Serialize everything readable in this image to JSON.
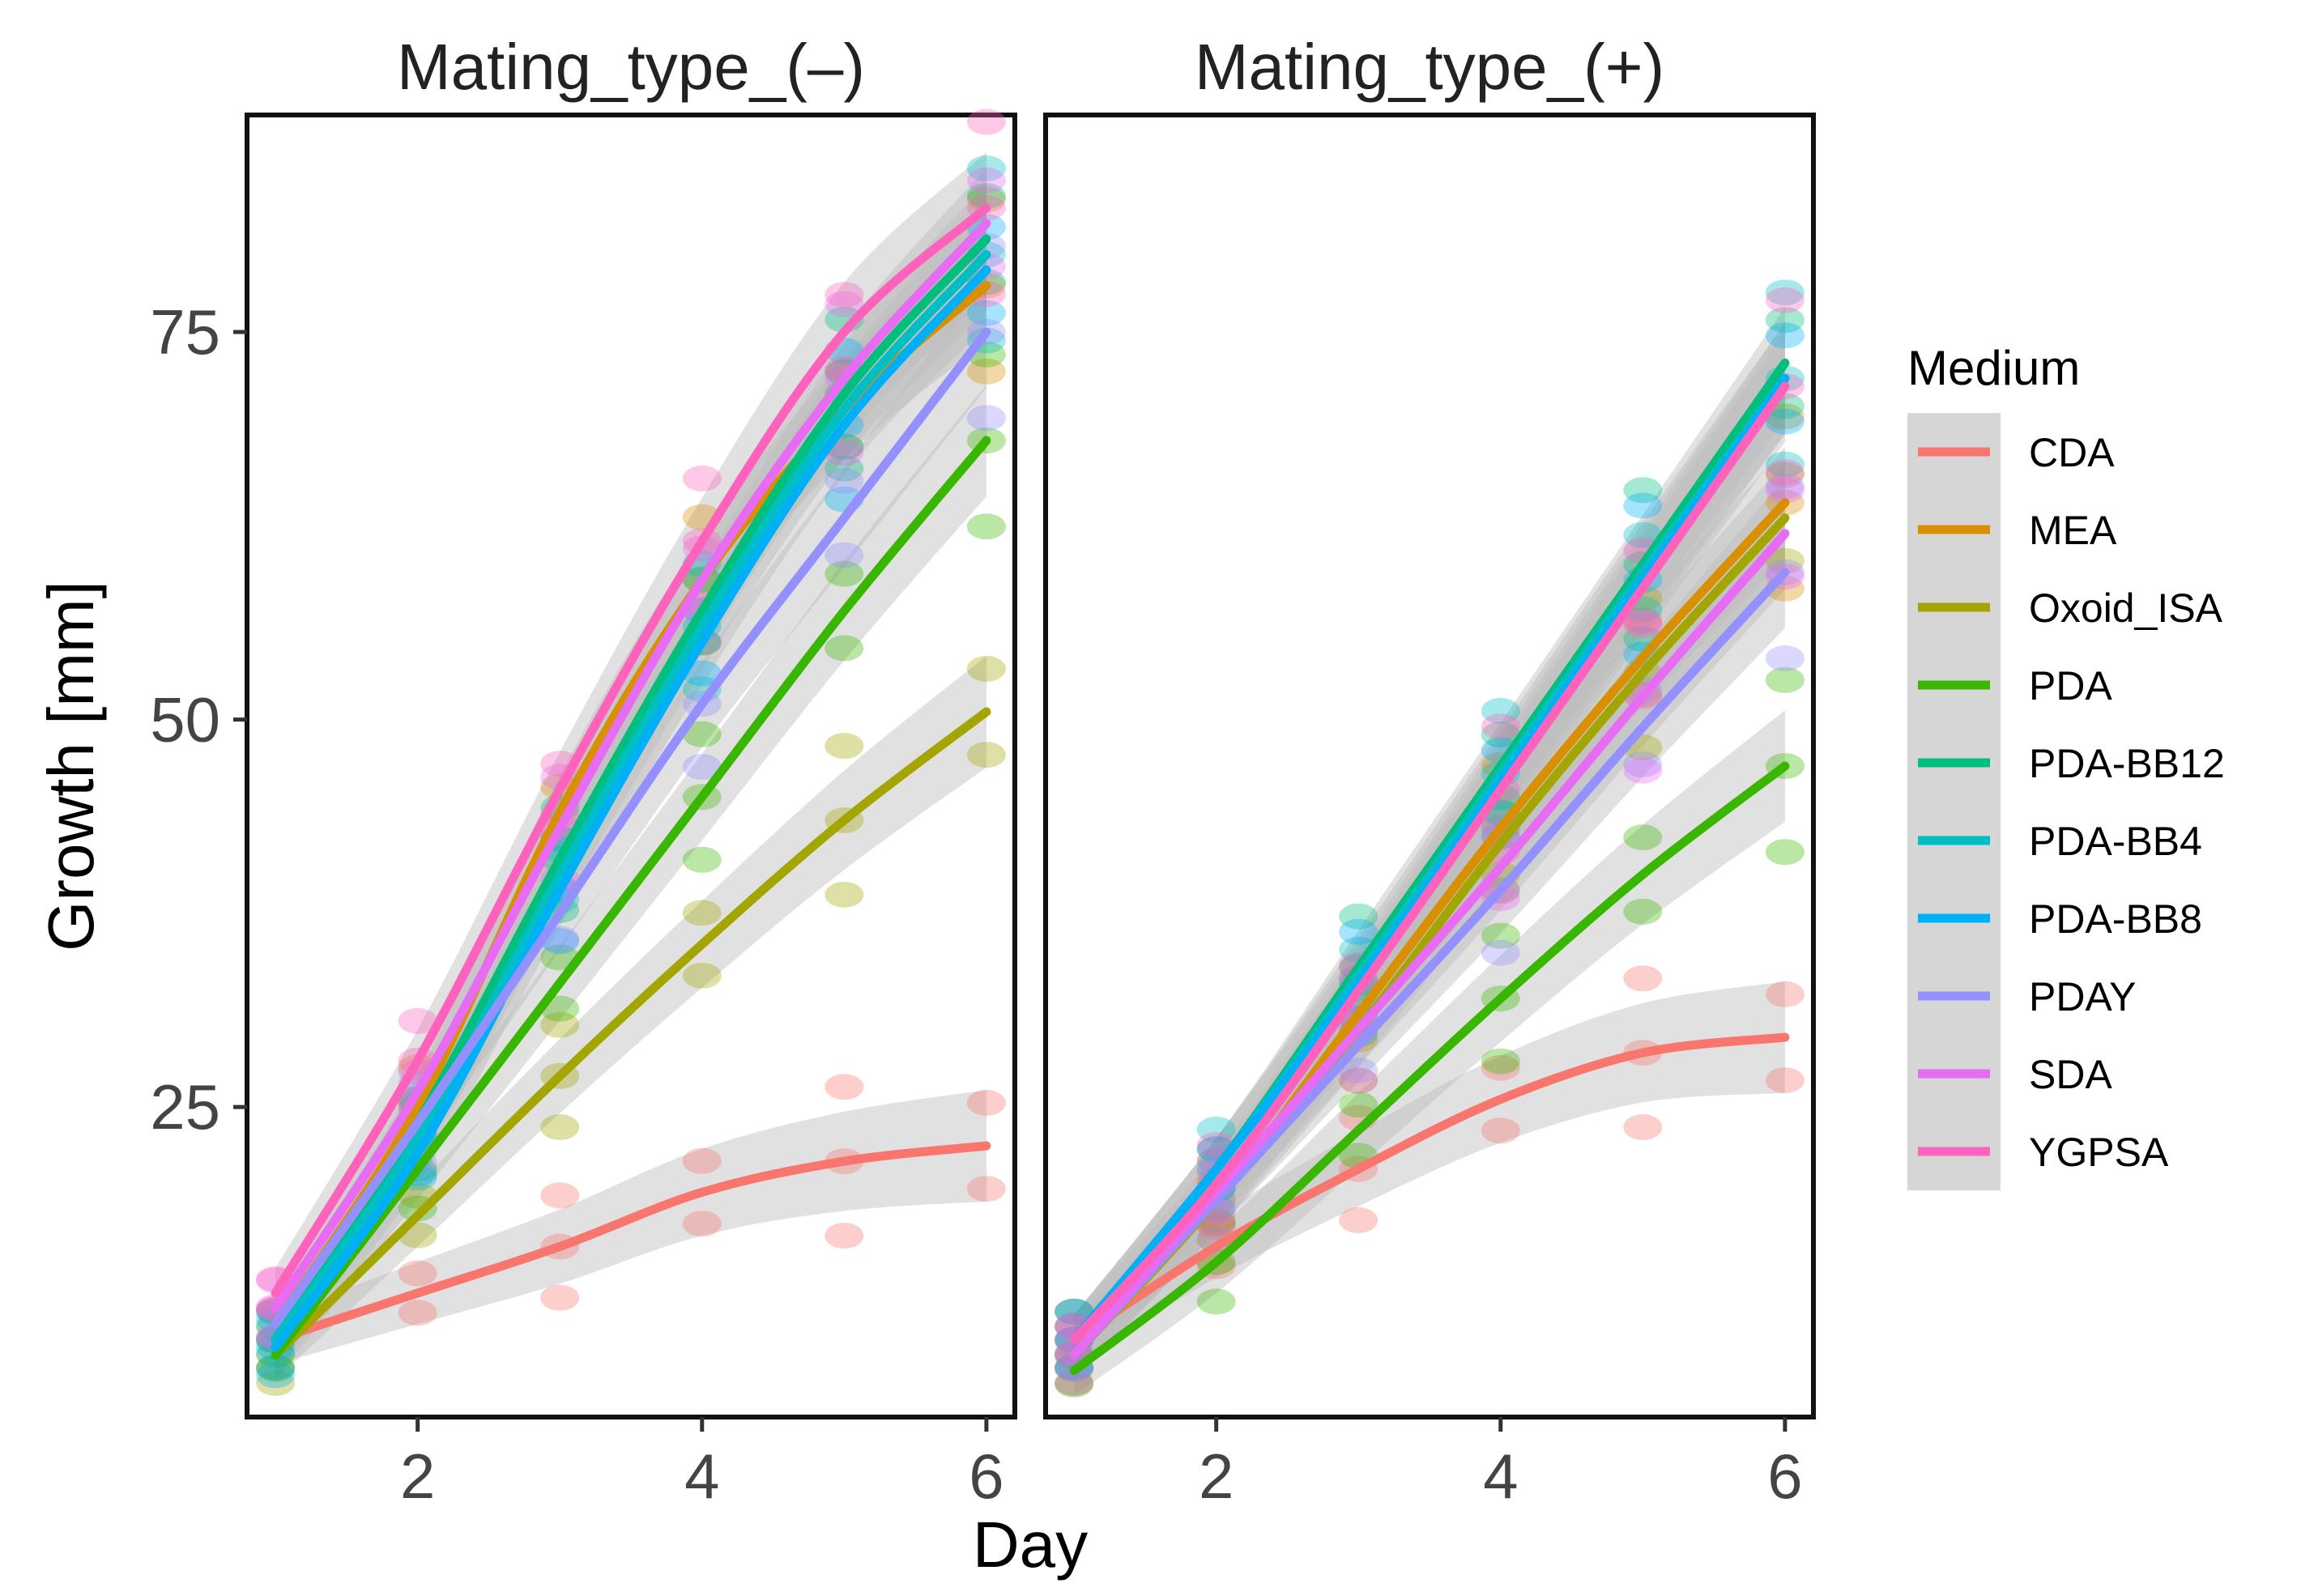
{
  "chart_data": {
    "type": "scatter",
    "xlabel": "Day",
    "ylabel": "Growth [mm]",
    "xlim": [
      0.8,
      6.2
    ],
    "ylim": [
      5,
      89
    ],
    "x_ticks": [
      2,
      4,
      6
    ],
    "y_ticks": [
      25,
      50,
      75
    ],
    "legend_title": "Medium",
    "legend_position": "right",
    "panels": [
      {
        "title": "Mating_type_(–)",
        "series": [
          {
            "name": "CDA",
            "color": "#F8766D",
            "x": [
              1,
              2,
              3,
              4,
              5,
              6
            ],
            "values": [
              10,
              13,
              16,
              19.5,
              21.5,
              22.5
            ]
          },
          {
            "name": "MEA",
            "color": "#D89000",
            "x": [
              1,
              2,
              3,
              4,
              5,
              6
            ],
            "values": [
              11,
              25,
              44,
              59,
              70,
              78
            ]
          },
          {
            "name": "Oxoid_ISA",
            "color": "#A3A500",
            "x": [
              1,
              2,
              3,
              4,
              5,
              6
            ],
            "values": [
              9,
              18,
              27,
              35.5,
              43.5,
              50.5
            ]
          },
          {
            "name": "PDA",
            "color": "#39B600",
            "x": [
              1,
              2,
              3,
              4,
              5,
              6
            ],
            "values": [
              9,
              21,
              33,
              45,
              57,
              68
            ]
          },
          {
            "name": "PDA-BB12",
            "color": "#00BF7D",
            "x": [
              1,
              2,
              3,
              4,
              5,
              6
            ],
            "values": [
              10,
              24,
              41,
              57,
              71,
              81
            ]
          },
          {
            "name": "PDA-BB4",
            "color": "#00BFC4",
            "x": [
              1,
              2,
              3,
              4,
              5,
              6
            ],
            "values": [
              10,
              23,
              40,
              56,
              70,
              80
            ]
          },
          {
            "name": "PDA-BB8",
            "color": "#00B0F6",
            "x": [
              1,
              2,
              3,
              4,
              5,
              6
            ],
            "values": [
              9.5,
              22,
              39,
              55,
              69,
              79
            ]
          },
          {
            "name": "PDAY",
            "color": "#9590FF",
            "x": [
              1,
              2,
              3,
              4,
              5,
              6
            ],
            "values": [
              11,
              24,
              37.5,
              51,
              63,
              75
            ]
          },
          {
            "name": "SDA",
            "color": "#E76BF3",
            "x": [
              1,
              2,
              3,
              4,
              5,
              6
            ],
            "values": [
              12,
              26,
              43,
              59,
              72,
              82
            ]
          },
          {
            "name": "YGPSA",
            "color": "#FF62BC",
            "x": [
              1,
              2,
              3,
              4,
              5,
              6
            ],
            "values": [
              13,
              28,
              45.5,
              61.5,
              75,
              83
            ]
          }
        ]
      },
      {
        "title": "Mating_type_(+)",
        "series": [
          {
            "name": "CDA",
            "color": "#F8766D",
            "x": [
              1,
              2,
              3,
              4,
              5,
              6
            ],
            "values": [
              10,
              16,
              21,
              25.5,
              28.5,
              29.5
            ]
          },
          {
            "name": "MEA",
            "color": "#D89000",
            "x": [
              1,
              2,
              3,
              4,
              5,
              6
            ],
            "values": [
              9,
              19,
              31,
              43,
              54,
              64
            ]
          },
          {
            "name": "Oxoid_ISA",
            "color": "#A3A500",
            "x": [
              1,
              2,
              3,
              4,
              5,
              6
            ],
            "values": [
              9,
              19,
              30,
              42,
              53,
              63
            ]
          },
          {
            "name": "PDA",
            "color": "#39B600",
            "x": [
              1,
              2,
              3,
              4,
              5,
              6
            ],
            "values": [
              8,
              15,
              23.5,
              32,
              40,
              47
            ]
          },
          {
            "name": "PDA-BB12",
            "color": "#00BF7D",
            "x": [
              1,
              2,
              3,
              4,
              5,
              6
            ],
            "values": [
              10,
              21,
              34,
              47,
              60,
              73
            ]
          },
          {
            "name": "PDA-BB4",
            "color": "#00BFC4",
            "x": [
              1,
              2,
              3,
              4,
              5,
              6
            ],
            "values": [
              10,
              21,
              33.5,
              46.5,
              59.5,
              72
            ]
          },
          {
            "name": "PDA-BB8",
            "color": "#00B0F6",
            "x": [
              1,
              2,
              3,
              4,
              5,
              6
            ],
            "values": [
              10,
              21,
              33,
              46,
              59,
              72
            ]
          },
          {
            "name": "PDAY",
            "color": "#9590FF",
            "x": [
              1,
              2,
              3,
              4,
              5,
              6
            ],
            "values": [
              9,
              19,
              29,
              39,
              49.5,
              59.5
            ]
          },
          {
            "name": "SDA",
            "color": "#E76BF3",
            "x": [
              1,
              2,
              3,
              4,
              5,
              6
            ],
            "values": [
              9,
              19.5,
              30,
              40.5,
              51.5,
              62
            ]
          },
          {
            "name": "YGPSA",
            "color": "#FF62BC",
            "x": [
              1,
              2,
              3,
              4,
              5,
              6
            ],
            "values": [
              10,
              20,
              32.5,
              45.5,
              58.5,
              71.5
            ]
          }
        ]
      }
    ]
  }
}
